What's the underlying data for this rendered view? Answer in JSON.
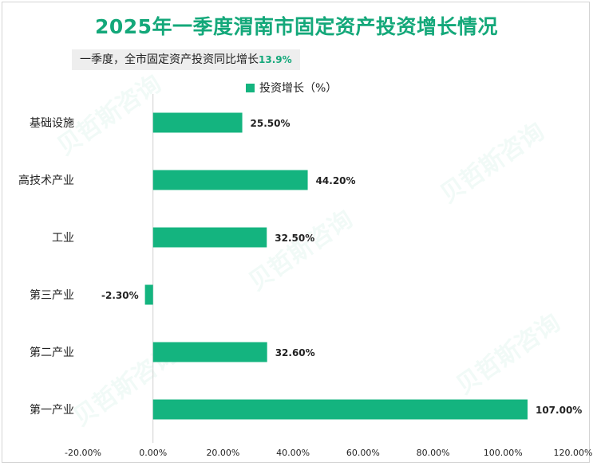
{
  "title": "2025年一季度渭南市固定资产投资增长情况",
  "subtitle": {
    "text": "一季度，全市固定资产投资同比增长",
    "highlight": "13.9%"
  },
  "watermark": "贝哲斯咨询",
  "colors": {
    "bar": "#14b47f",
    "title": "#14a87a"
  },
  "chart_data": {
    "type": "bar",
    "orientation": "horizontal",
    "categories": [
      "基础设施",
      "高技术产业",
      "工业",
      "第三产业",
      "第二产业",
      "第一产业"
    ],
    "series": [
      {
        "name": "投资增长（%）",
        "values": [
          25.5,
          44.2,
          32.5,
          -2.3,
          32.6,
          107.0
        ]
      }
    ],
    "data_labels": [
      "25.50%",
      "44.20%",
      "32.50%",
      "-2.30%",
      "32.60%",
      "107.00%"
    ],
    "xlim": [
      -20,
      120
    ],
    "xticks": [
      -20,
      0,
      20,
      40,
      60,
      80,
      100,
      120
    ],
    "xtick_labels": [
      "-20.00%",
      "0.00%",
      "20.00%",
      "40.00%",
      "60.00%",
      "80.00%",
      "100.00%",
      "120.00%"
    ],
    "legend": "top-center",
    "grid": false
  }
}
